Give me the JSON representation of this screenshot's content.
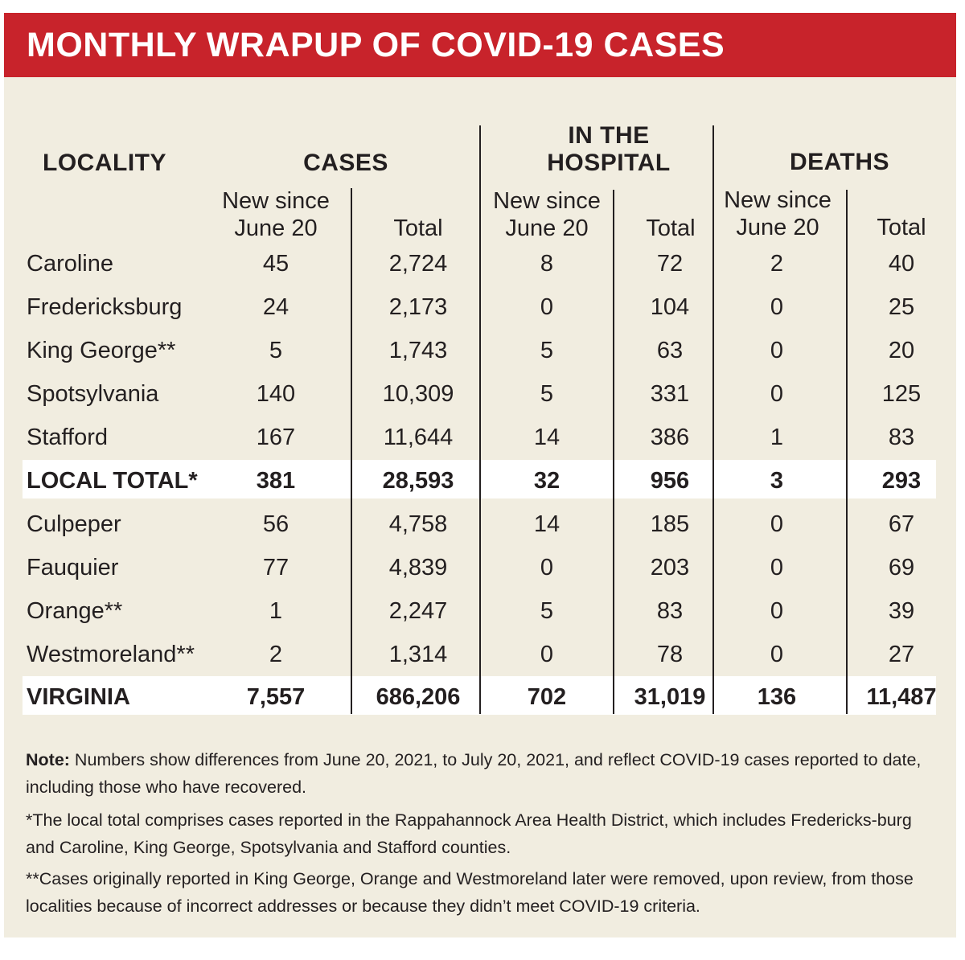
{
  "title": "MONTHLY WRAPUP OF COVID-19 CASES",
  "headers": {
    "locality": "LOCALITY",
    "cases": "CASES",
    "hospital_line1": "IN THE",
    "hospital_line2": "HOSPITAL",
    "deaths": "DEATHS",
    "new_line1": "New since",
    "new_line2": "June 20",
    "total": "Total"
  },
  "rows": [
    {
      "locality": "Caroline",
      "cases_new": "45",
      "cases_total": "2,724",
      "hosp_new": "8",
      "hosp_total": "72",
      "deaths_new": "2",
      "deaths_total": "40"
    },
    {
      "locality": "Fredericksburg",
      "cases_new": "24",
      "cases_total": "2,173",
      "hosp_new": "0",
      "hosp_total": "104",
      "deaths_new": "0",
      "deaths_total": "25"
    },
    {
      "locality": "King George**",
      "cases_new": "5",
      "cases_total": "1,743",
      "hosp_new": "5",
      "hosp_total": "63",
      "deaths_new": "0",
      "deaths_total": "20"
    },
    {
      "locality": "Spotsylvania",
      "cases_new": "140",
      "cases_total": "10,309",
      "hosp_new": "5",
      "hosp_total": "331",
      "deaths_new": "0",
      "deaths_total": "125"
    },
    {
      "locality": "Stafford",
      "cases_new": "167",
      "cases_total": "11,644",
      "hosp_new": "14",
      "hosp_total": "386",
      "deaths_new": "1",
      "deaths_total": "83"
    },
    {
      "locality": "LOCAL TOTAL*",
      "cases_new": "381",
      "cases_total": "28,593",
      "hosp_new": "32",
      "hosp_total": "956",
      "deaths_new": "3",
      "deaths_total": "293"
    },
    {
      "locality": "Culpeper",
      "cases_new": "56",
      "cases_total": "4,758",
      "hosp_new": "14",
      "hosp_total": "185",
      "deaths_new": "0",
      "deaths_total": "67"
    },
    {
      "locality": "Fauquier",
      "cases_new": "77",
      "cases_total": "4,839",
      "hosp_new": "0",
      "hosp_total": "203",
      "deaths_new": "0",
      "deaths_total": "69"
    },
    {
      "locality": "Orange**",
      "cases_new": "1",
      "cases_total": "2,247",
      "hosp_new": "5",
      "hosp_total": "83",
      "deaths_new": "0",
      "deaths_total": "39"
    },
    {
      "locality": "Westmoreland**",
      "cases_new": "2",
      "cases_total": "1,314",
      "hosp_new": "0",
      "hosp_total": "78",
      "deaths_new": "0",
      "deaths_total": "27"
    },
    {
      "locality": "VIRGINIA",
      "cases_new": "7,557",
      "cases_total": "686,206",
      "hosp_new": "702",
      "hosp_total": "31,019",
      "deaths_new": "136",
      "deaths_total": "11,487"
    }
  ],
  "notes": {
    "note_label": "Note:",
    "note_text": " Numbers show differences from June 20, 2021, to July 20, 2021, and reflect COVID-19 cases reported to date, including those who have recovered.",
    "footnote1": "*The local total comprises cases reported in the Rappahannock Area Health District, which includes Fredericks-burg and Caroline, King George, Spotsylvania and Stafford counties.",
    "footnote2": "**Cases originally reported in King George, Orange and Westmoreland later were removed, upon review, from those localities because of incorrect addresses or because they didn’t meet COVID-19 criteria."
  }
}
